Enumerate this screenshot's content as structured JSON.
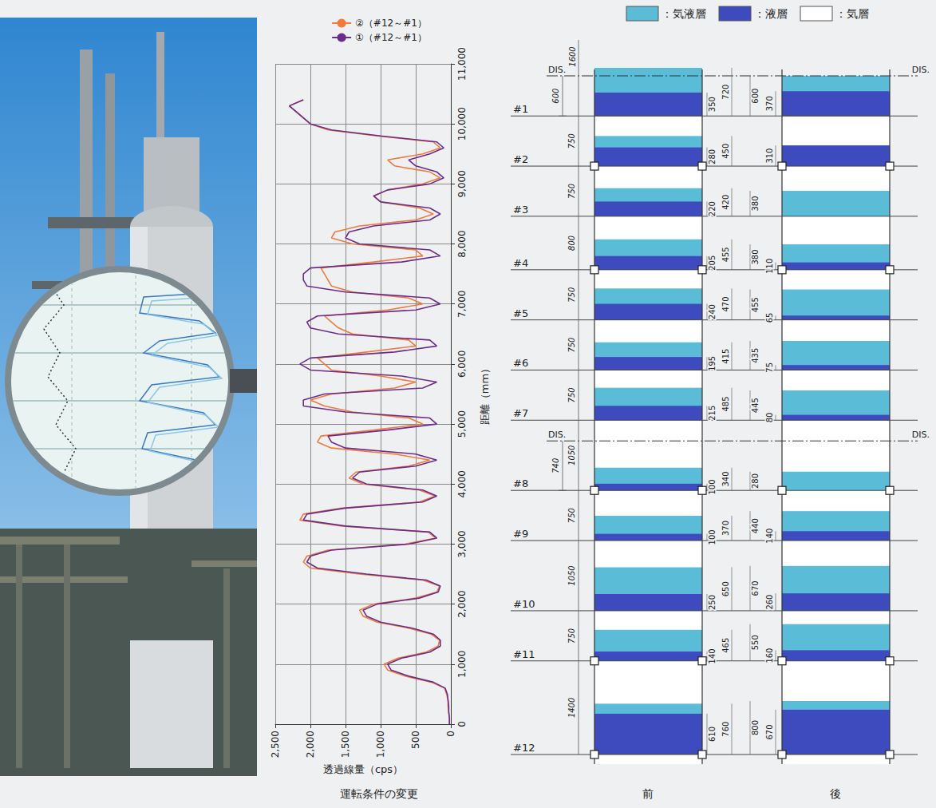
{
  "chart_data": {
    "type": "line",
    "x_label": "透過線量（cps）",
    "y_label": "距離（mm）",
    "y": [
      0,
      100,
      200,
      300,
      400,
      500,
      600,
      700,
      800,
      900,
      1000,
      1100,
      1200,
      1300,
      1400,
      1500,
      1600,
      1700,
      1800,
      1900,
      2000,
      2100,
      2200,
      2300,
      2400,
      2500,
      2600,
      2700,
      2800,
      2900,
      3000,
      3100,
      3200,
      3300,
      3400,
      3500,
      3600,
      3700,
      3800,
      3900,
      4000,
      4100,
      4200,
      4300,
      4400,
      4500,
      4600,
      4700,
      4800,
      4900,
      5000,
      5100,
      5200,
      5300,
      5400,
      5500,
      5600,
      5700,
      5800,
      5900,
      6000,
      6100,
      6200,
      6300,
      6400,
      6500,
      6600,
      6700,
      6800,
      6900,
      7000,
      7100,
      7200,
      7300,
      7400,
      7500,
      7600,
      7700,
      7800,
      7900,
      8000,
      8100,
      8200,
      8300,
      8400,
      8500,
      8600,
      8700,
      8800,
      8900,
      9000,
      9100,
      9200,
      9300,
      9400,
      9500,
      9600,
      9700,
      9800,
      9900,
      10000,
      10100,
      10200,
      10300,
      10400
    ],
    "series": [
      {
        "name": "②（#12～#1）",
        "color": "#f07b3c",
        "values": [
          20,
          20,
          30,
          40,
          40,
          60,
          90,
          280,
          650,
          900,
          950,
          750,
          350,
          180,
          160,
          280,
          600,
          1050,
          1250,
          1300,
          1100,
          500,
          200,
          160,
          400,
          1300,
          2000,
          2100,
          2050,
          1750,
          650,
          220,
          320,
          1550,
          2150,
          2100,
          1550,
          450,
          220,
          450,
          1250,
          1450,
          1350,
          600,
          300,
          800,
          1700,
          1900,
          1850,
          1100,
          400,
          600,
          1400,
          1800,
          2000,
          1700,
          800,
          500,
          1000,
          1700,
          1800,
          1900,
          1200,
          500,
          600,
          1400,
          1600,
          1700,
          1800,
          900,
          400,
          600,
          1400,
          1700,
          1750,
          1800,
          1850,
          1100,
          400,
          500,
          1400,
          1700,
          1650,
          1300,
          500,
          250,
          450,
          1000,
          1100,
          900,
          400,
          150,
          300,
          800,
          900,
          400,
          150,
          250,
          1050,
          1750,
          2000,
          2100,
          2200,
          2300,
          2100
        ]
      },
      {
        "name": "①（#12～#1）",
        "color": "#6b2c8c",
        "values": [
          20,
          20,
          30,
          30,
          40,
          50,
          80,
          250,
          600,
          850,
          900,
          700,
          300,
          150,
          150,
          250,
          550,
          1000,
          1200,
          1250,
          1050,
          450,
          180,
          150,
          350,
          1200,
          1900,
          2050,
          2000,
          1700,
          600,
          200,
          300,
          1500,
          2100,
          2050,
          1500,
          400,
          200,
          400,
          1200,
          1400,
          1300,
          500,
          200,
          500,
          1500,
          1700,
          1750,
          900,
          200,
          300,
          1500,
          2100,
          2100,
          1800,
          400,
          200,
          700,
          2000,
          2150,
          2000,
          800,
          200,
          300,
          1600,
          2000,
          2050,
          1900,
          500,
          150,
          300,
          1500,
          2050,
          2100,
          2100,
          2000,
          700,
          150,
          300,
          1300,
          1500,
          1450,
          1100,
          300,
          150,
          300,
          1000,
          1100,
          900,
          300,
          100,
          200,
          500,
          600,
          300,
          100,
          200,
          1000,
          1700,
          2000,
          2100,
          2200,
          2300,
          2100
        ]
      }
    ],
    "xlim": [
      2500,
      0
    ],
    "xticks": [
      0,
      500,
      1000,
      1500,
      2000,
      2500
    ],
    "ylim": [
      0,
      11000
    ],
    "yticks": [
      0,
      1000,
      2000,
      3000,
      4000,
      5000,
      6000,
      7000,
      8000,
      9000,
      10000,
      11000
    ],
    "grid": true,
    "legend": "top"
  },
  "diagram": {
    "legend": [
      {
        "label": "：気液層",
        "color": "#5bbcd8"
      },
      {
        "label": "：液層",
        "color": "#3d4bbf"
      },
      {
        "label": "：気層",
        "color": "#ffffff"
      }
    ],
    "dis_label": "DIS.",
    "trays": [
      {
        "label": "#1",
        "spacing": 1600,
        "dis_offset": 600,
        "before": {
          "liquid": 350,
          "froth": 720
        },
        "after": {
          "liquid": 370,
          "froth": 600
        }
      },
      {
        "label": "#2",
        "spacing": 750,
        "nozzle": true,
        "before": {
          "liquid": 280,
          "froth": 450
        },
        "after": {
          "liquid": 310
        }
      },
      {
        "label": "#3",
        "spacing": 750,
        "before": {
          "liquid": 220,
          "froth": 420
        },
        "after": {
          "froth": 380
        }
      },
      {
        "label": "#4",
        "spacing": 800,
        "nozzle": true,
        "before": {
          "liquid": 205,
          "froth": 455
        },
        "after": {
          "liquid": 110,
          "froth": 380
        }
      },
      {
        "label": "#5",
        "spacing": 750,
        "before": {
          "liquid": 240,
          "froth": 470
        },
        "after": {
          "liquid": 65,
          "froth": 455
        }
      },
      {
        "label": "#6",
        "spacing": 750,
        "before": {
          "liquid": 195,
          "froth": 415
        },
        "after": {
          "liquid": 75,
          "froth": 435
        }
      },
      {
        "label": "#7",
        "spacing": 750,
        "before": {
          "liquid": 215,
          "froth": 485
        },
        "after": {
          "liquid": 80,
          "froth": 445
        }
      },
      {
        "label": "#8",
        "spacing": 1050,
        "dis_offset": 740,
        "nozzle": true,
        "before": {
          "liquid": 100,
          "froth": 340
        },
        "after": {
          "froth": 280
        }
      },
      {
        "label": "#9",
        "spacing": 750,
        "before": {
          "liquid": 100,
          "froth": 370
        },
        "after": {
          "liquid": 140,
          "froth": 440
        }
      },
      {
        "label": "#10",
        "spacing": 1050,
        "before": {
          "liquid": 250,
          "froth": 650
        },
        "after": {
          "liquid": 260,
          "froth": 670
        }
      },
      {
        "label": "#11",
        "spacing": 750,
        "nozzle": true,
        "before": {
          "liquid": 140,
          "froth": 465
        },
        "after": {
          "liquid": 160,
          "froth": 550
        }
      },
      {
        "label": "#12",
        "spacing": 1400,
        "nozzle": true,
        "before": {
          "liquid": 610,
          "froth": 760
        },
        "after": {
          "liquid": 670,
          "froth": 800
        }
      }
    ]
  },
  "captions": {
    "chart": "運転条件の変更",
    "before": "前",
    "after": "後"
  }
}
